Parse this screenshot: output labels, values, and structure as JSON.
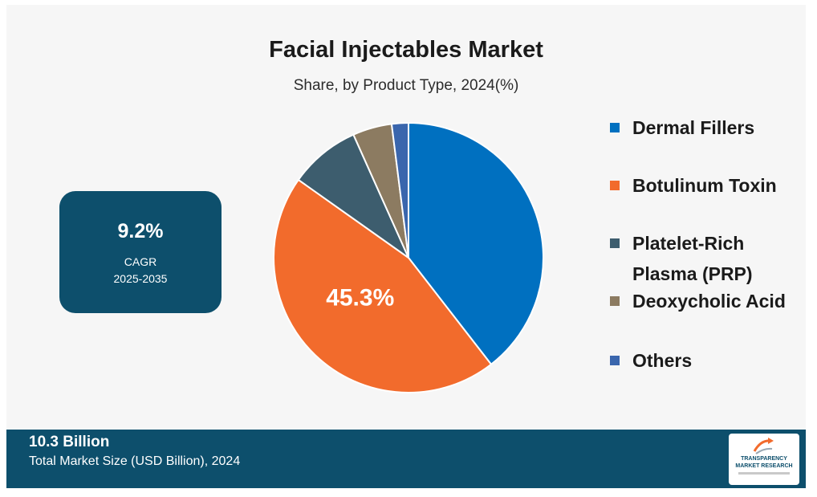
{
  "colors": {
    "dermal_fillers": "#0070c0",
    "botulinum_toxin": "#f26b2c",
    "prp": "#3d5d6e",
    "deoxycholic_acid": "#8c7b61",
    "others": "#3a66ad",
    "navy": "#0d4f6c"
  },
  "cagr": {
    "value": "9.2%",
    "label": "CAGR",
    "period": "2025-2035"
  },
  "footer": {
    "value": "10.3 Billion",
    "label": "Total Market Size (USD Billion), 2024"
  },
  "logo": {
    "line1": "TRANSPARENCY",
    "line2": "MARKET RESEARCH"
  },
  "chart_data": {
    "type": "pie",
    "title": "Facial Injectables Market",
    "subtitle": "Share, by Product Type, 2024(%)",
    "categories": [
      "Dermal Fillers",
      "Botulinum Toxin",
      "Platelet-Rich Plasma (PRP)",
      "Deoxycholic Acid",
      "Others"
    ],
    "values": [
      39.5,
      45.3,
      8.5,
      4.7,
      2.0
    ],
    "slice_labels": [
      "",
      "45.3%",
      "",
      "",
      ""
    ],
    "legend_position": "right",
    "start_angle_deg": 0,
    "direction": "clockwise"
  }
}
